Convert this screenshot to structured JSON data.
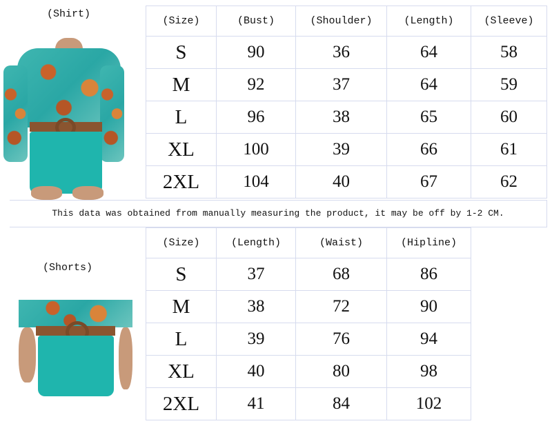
{
  "shirt": {
    "label": "(Shirt)",
    "headers": [
      "(Size)",
      "(Bust)",
      "(Shoulder)",
      "(Length)",
      "(Sleeve)"
    ],
    "rows": [
      [
        "S",
        "90",
        "36",
        "64",
        "58"
      ],
      [
        "M",
        "92",
        "37",
        "64",
        "59"
      ],
      [
        "L",
        "96",
        "38",
        "65",
        "60"
      ],
      [
        "XL",
        "100",
        "39",
        "66",
        "61"
      ],
      [
        "2XL",
        "104",
        "40",
        "67",
        "62"
      ]
    ]
  },
  "note": "This data was obtained from manually measuring the product, it may be off by 1-2 CM.",
  "shorts": {
    "label": "(Shorts)",
    "headers": [
      "(Size)",
      "(Length)",
      "(Waist)",
      "(Hipline)"
    ],
    "rows": [
      [
        "S",
        "37",
        "68",
        "86"
      ],
      [
        "M",
        "38",
        "72",
        "90"
      ],
      [
        "L",
        "39",
        "76",
        "94"
      ],
      [
        "XL",
        "40",
        "80",
        "98"
      ],
      [
        "2XL",
        "41",
        "84",
        "102"
      ]
    ]
  },
  "colors": {
    "grid": "#d6dbee",
    "teal": "#1fb5ad",
    "orange": "#c8622a"
  }
}
